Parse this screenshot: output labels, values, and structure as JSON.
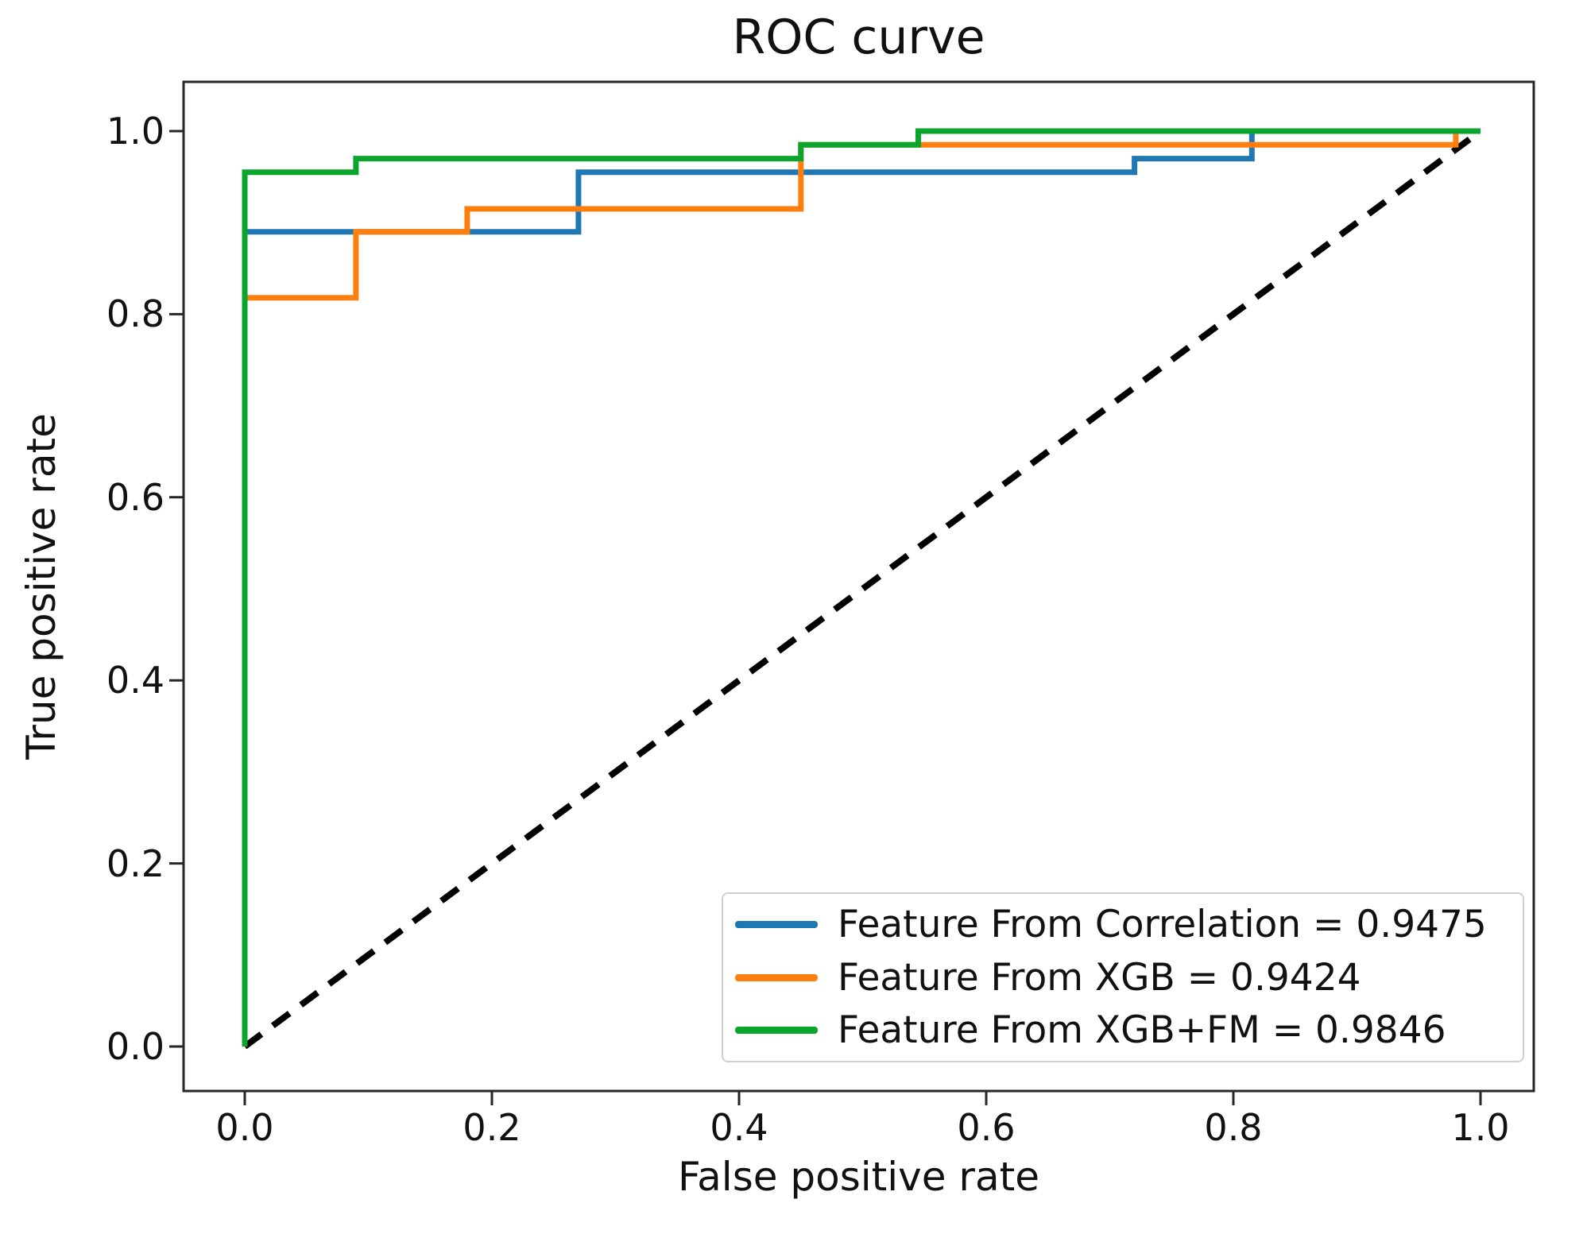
{
  "chart_data": {
    "type": "line",
    "subtype": "roc-step-curves",
    "title": "ROC curve",
    "xlabel": "False positive rate",
    "ylabel": "True positive rate",
    "xlim": [
      0.0,
      1.0
    ],
    "ylim": [
      0.0,
      1.0
    ],
    "grid": false,
    "x_ticks": [
      "0.0",
      "0.2",
      "0.4",
      "0.6",
      "0.8",
      "1.0"
    ],
    "y_ticks": [
      "0.0",
      "0.2",
      "0.4",
      "0.6",
      "0.8",
      "1.0"
    ],
    "legend_position": "lower right",
    "series": [
      {
        "name": "Feature From Correlation = 0.9475",
        "auc": 0.9475,
        "color": "#1f77b4",
        "points": [
          [
            0,
            0
          ],
          [
            0,
            0.89
          ],
          [
            0.27,
            0.89
          ],
          [
            0.27,
            0.955
          ],
          [
            0.72,
            0.955
          ],
          [
            0.72,
            0.97
          ],
          [
            0.815,
            0.97
          ],
          [
            0.815,
            1.0
          ],
          [
            1.0,
            1.0
          ]
        ]
      },
      {
        "name": "Feature From XGB = 0.9424",
        "auc": 0.9424,
        "color": "#ff7f0e",
        "points": [
          [
            0,
            0
          ],
          [
            0,
            0.818
          ],
          [
            0.09,
            0.818
          ],
          [
            0.09,
            0.89
          ],
          [
            0.18,
            0.89
          ],
          [
            0.18,
            0.915
          ],
          [
            0.45,
            0.915
          ],
          [
            0.45,
            0.985
          ],
          [
            0.98,
            0.985
          ],
          [
            0.98,
            1.0
          ],
          [
            1.0,
            1.0
          ]
        ]
      },
      {
        "name": "Feature From XGB+FM = 0.9846",
        "auc": 0.9846,
        "color": "#0ba42c",
        "points": [
          [
            0,
            0
          ],
          [
            0,
            0.955
          ],
          [
            0.09,
            0.955
          ],
          [
            0.09,
            0.97
          ],
          [
            0.45,
            0.97
          ],
          [
            0.45,
            0.985
          ],
          [
            0.545,
            0.985
          ],
          [
            0.545,
            1.0
          ],
          [
            1.0,
            1.0
          ]
        ]
      }
    ],
    "reference_line": {
      "name": "chance-diagonal",
      "style": "dashed",
      "color": "#000000",
      "points": [
        [
          0,
          0
        ],
        [
          1.0,
          1.0
        ]
      ]
    }
  }
}
